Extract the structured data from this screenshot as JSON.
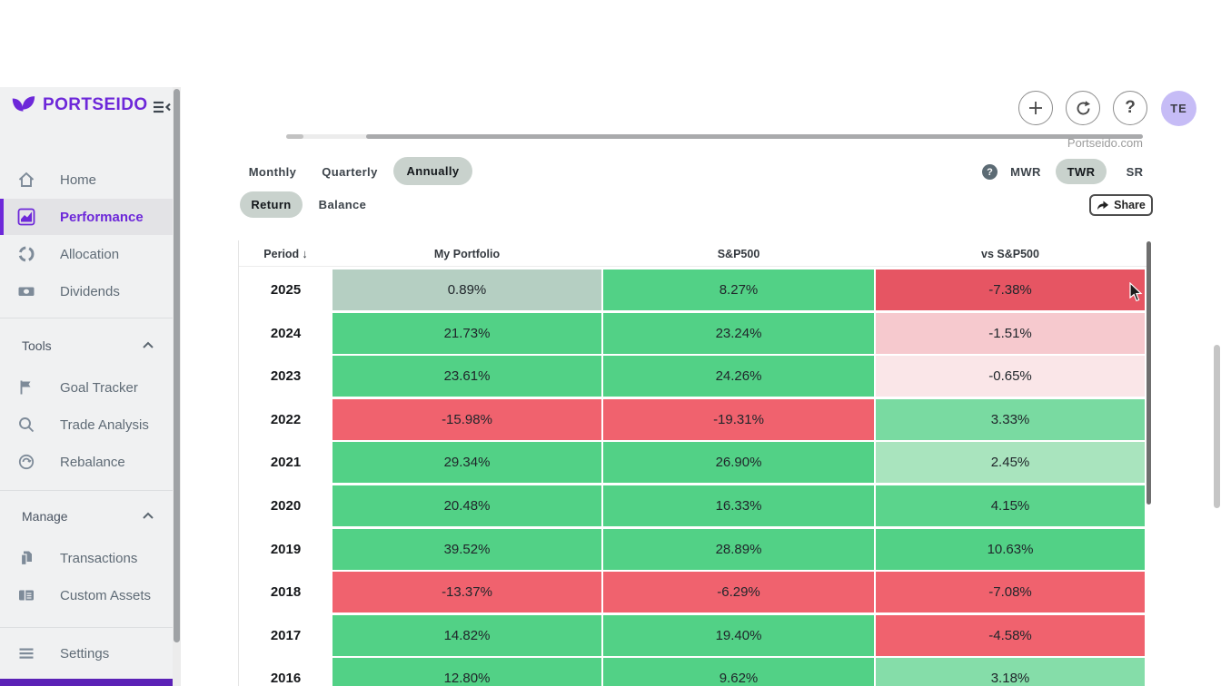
{
  "app": {
    "brand": "PORTSEIDO",
    "watermark": "Portseido.com"
  },
  "colors": {
    "brand_purple": "#6d28d9",
    "green_strong": "#52d186",
    "red_strong": "#f0626e",
    "pill_bg": "#c9d2cd",
    "avatar_bg": "#c6bcf6"
  },
  "sidebar": {
    "nav": [
      {
        "label": "Home"
      },
      {
        "label": "Performance",
        "active": true
      },
      {
        "label": "Allocation"
      },
      {
        "label": "Dividends"
      }
    ],
    "sections": [
      {
        "label": "Tools",
        "items": [
          {
            "label": "Goal Tracker"
          },
          {
            "label": "Trade Analysis"
          },
          {
            "label": "Rebalance"
          }
        ]
      },
      {
        "label": "Manage",
        "items": [
          {
            "label": "Transactions"
          },
          {
            "label": "Custom Assets"
          }
        ]
      }
    ],
    "settings_label": "Settings"
  },
  "topbar": {
    "avatar_initials": "TE",
    "help_glyph": "?"
  },
  "controls": {
    "period_tabs": [
      "Monthly",
      "Quarterly",
      "Annually"
    ],
    "period_active": "Annually",
    "view_tabs": [
      "Return",
      "Balance"
    ],
    "view_active": "Return",
    "metric_help": "?",
    "metric_tabs": [
      "MWR",
      "TWR",
      "SR"
    ],
    "metric_active": "TWR",
    "share_label": "Share"
  },
  "table": {
    "columns": [
      "Period",
      "My Portfolio",
      "S&P500",
      "vs S&P500"
    ],
    "sort_column": "Period",
    "sort_direction": "desc",
    "rows": [
      {
        "period": "2025",
        "cells": [
          {
            "v": "0.89%",
            "bg": "#b5cfc2"
          },
          {
            "v": "8.27%",
            "bg": "#52d186"
          },
          {
            "v": "-7.38%",
            "bg": "#e65563"
          }
        ]
      },
      {
        "period": "2024",
        "cells": [
          {
            "v": "21.73%",
            "bg": "#52d186"
          },
          {
            "v": "23.24%",
            "bg": "#52d186"
          },
          {
            "v": "-1.51%",
            "bg": "#f6c9ce"
          }
        ]
      },
      {
        "period": "2023",
        "cells": [
          {
            "v": "23.61%",
            "bg": "#52d186"
          },
          {
            "v": "24.26%",
            "bg": "#52d186"
          },
          {
            "v": "-0.65%",
            "bg": "#fae6e8"
          }
        ]
      },
      {
        "period": "2022",
        "cells": [
          {
            "v": "-15.98%",
            "bg": "#f0626e"
          },
          {
            "v": "-19.31%",
            "bg": "#f0626e"
          },
          {
            "v": "3.33%",
            "bg": "#79daa1"
          }
        ]
      },
      {
        "period": "2021",
        "cells": [
          {
            "v": "29.34%",
            "bg": "#52d186"
          },
          {
            "v": "26.90%",
            "bg": "#52d186"
          },
          {
            "v": "2.45%",
            "bg": "#a9e4be"
          }
        ]
      },
      {
        "period": "2020",
        "cells": [
          {
            "v": "20.48%",
            "bg": "#52d186"
          },
          {
            "v": "16.33%",
            "bg": "#52d186"
          },
          {
            "v": "4.15%",
            "bg": "#5bd48c"
          }
        ]
      },
      {
        "period": "2019",
        "cells": [
          {
            "v": "39.52%",
            "bg": "#52d186"
          },
          {
            "v": "28.89%",
            "bg": "#52d186"
          },
          {
            "v": "10.63%",
            "bg": "#52d186"
          }
        ]
      },
      {
        "period": "2018",
        "cells": [
          {
            "v": "-13.37%",
            "bg": "#f0626e"
          },
          {
            "v": "-6.29%",
            "bg": "#f0626e"
          },
          {
            "v": "-7.08%",
            "bg": "#f0626e"
          }
        ]
      },
      {
        "period": "2017",
        "cells": [
          {
            "v": "14.82%",
            "bg": "#52d186"
          },
          {
            "v": "19.40%",
            "bg": "#52d186"
          },
          {
            "v": "-4.58%",
            "bg": "#f0626e"
          }
        ]
      },
      {
        "period": "2016",
        "cells": [
          {
            "v": "12.80%",
            "bg": "#52d186"
          },
          {
            "v": "9.62%",
            "bg": "#52d186"
          },
          {
            "v": "3.18%",
            "bg": "#85dda9"
          }
        ]
      }
    ]
  }
}
